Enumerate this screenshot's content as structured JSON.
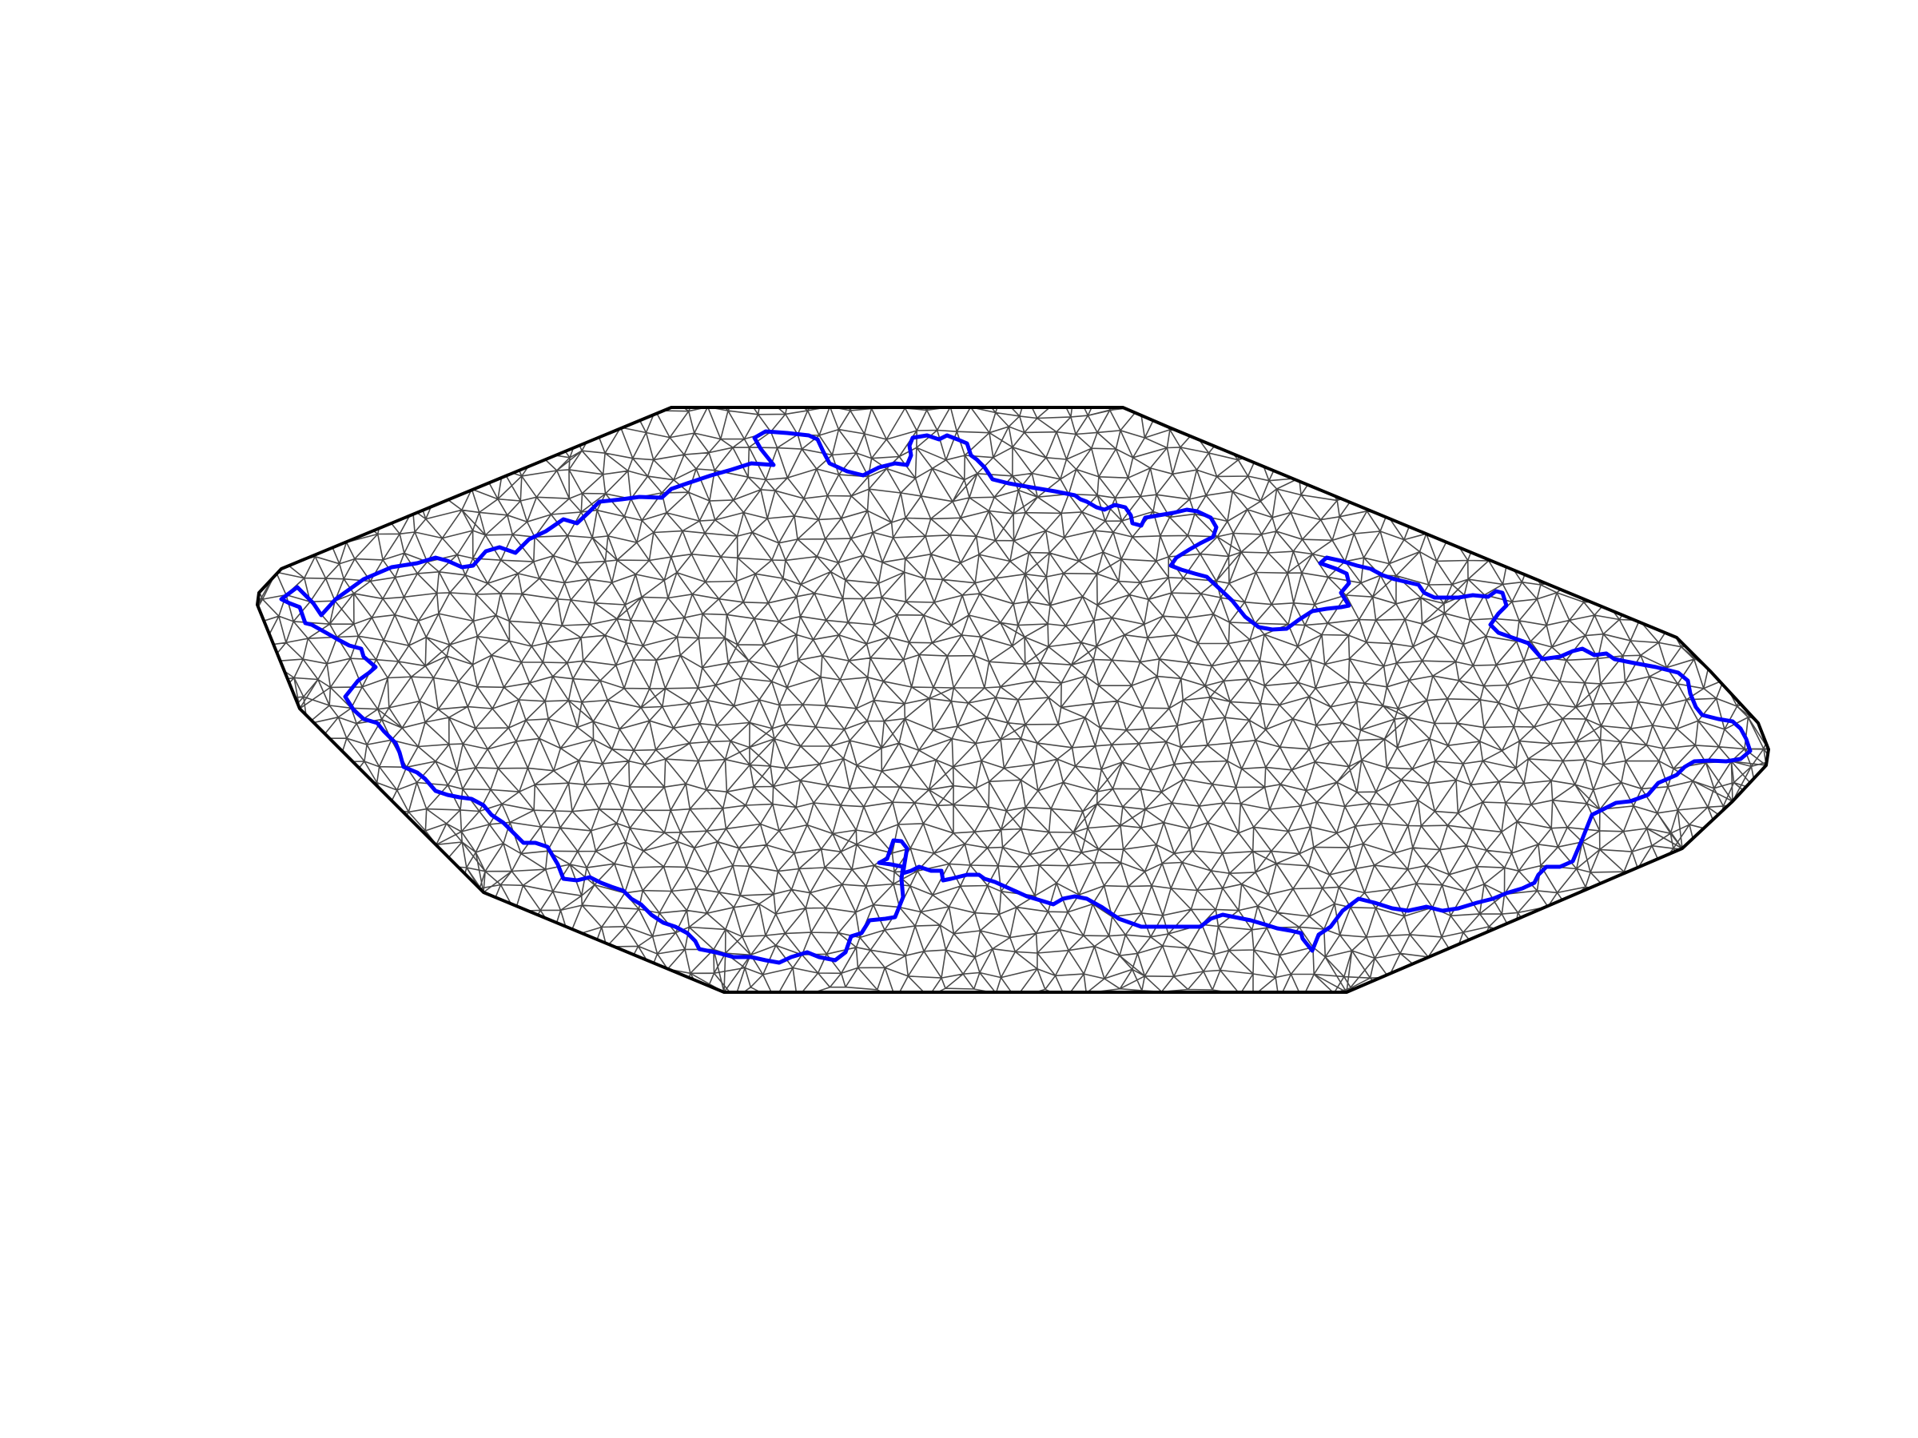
{
  "figure": {
    "type": "triangular-mesh",
    "background_color": "#ffffff",
    "mesh_color": "#4a4a4a",
    "hull_color": "#000000",
    "border_color": "#0000ff",
    "description_visible_text": []
  },
  "chart_data": {
    "type": "mesh",
    "title": "",
    "xlabel": "",
    "ylabel": "",
    "grid": false,
    "legend": "none",
    "series": []
  }
}
